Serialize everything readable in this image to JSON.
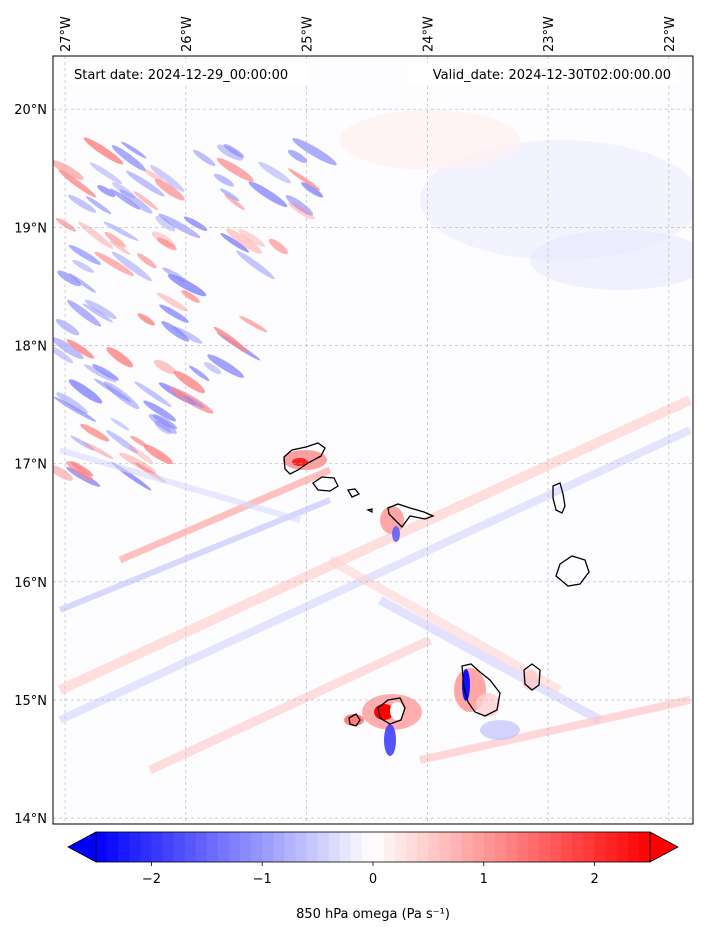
{
  "map": {
    "start_date": "Start date: 2024-12-29_00:00:00",
    "valid_date": "Valid_date: 2024-12-30T02:00:00.00",
    "extent": {
      "lon_min": -27.1,
      "lon_max": -21.8,
      "lat_min": 13.95,
      "lat_max": 20.45
    },
    "lon_ticks": [
      {
        "value": -27,
        "label": "27°W"
      },
      {
        "value": -26,
        "label": "26°W"
      },
      {
        "value": -25,
        "label": "25°W"
      },
      {
        "value": -24,
        "label": "24°W"
      },
      {
        "value": -23,
        "label": "23°W"
      },
      {
        "value": -22,
        "label": "22°W"
      }
    ],
    "lat_ticks": [
      {
        "value": 20,
        "label": "20°N"
      },
      {
        "value": 19,
        "label": "19°N"
      },
      {
        "value": 18,
        "label": "18°N"
      },
      {
        "value": 17,
        "label": "17°N"
      },
      {
        "value": 16,
        "label": "16°N"
      },
      {
        "value": 15,
        "label": "15°N"
      },
      {
        "value": 14,
        "label": "14°N"
      }
    ],
    "gridlines": true,
    "colormap": "bwr"
  },
  "colorbar": {
    "label": "850 hPa omega (Pa s⁻¹)",
    "range": [
      -2.5,
      2.5
    ],
    "extend": "both",
    "ticks": [
      {
        "value": -2,
        "label": "−2"
      },
      {
        "value": -1,
        "label": "−1"
      },
      {
        "value": 0,
        "label": "0"
      },
      {
        "value": 1,
        "label": "1"
      },
      {
        "value": 2,
        "label": "2"
      }
    ],
    "colors": {
      "low": "#0000ff",
      "mid": "#ffffff",
      "high": "#ff0000"
    }
  }
}
